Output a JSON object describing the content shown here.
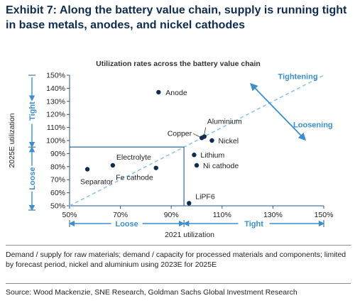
{
  "exhibit": {
    "title": "Exhibit 7: Along the battery value chain, supply is running tight in base metals, anodes, and nickel cathodes"
  },
  "chart_data": {
    "type": "scatter",
    "title": "Utilization rates across the battery value chain",
    "xlabel": "2021 utilization",
    "ylabel": "2025E utilization",
    "xlim": [
      50,
      150
    ],
    "ylim": [
      50,
      150
    ],
    "x_ticks": [
      "50%",
      "70%",
      "90%",
      "110%",
      "130%",
      "150%"
    ],
    "y_ticks": [
      "50%",
      "60%",
      "70%",
      "80%",
      "90%",
      "100%",
      "110%",
      "120%",
      "130%",
      "140%",
      "150%"
    ],
    "points": [
      {
        "label": "Anode",
        "x": 85,
        "y": 137
      },
      {
        "label": "Aluminium",
        "x": 103,
        "y": 103
      },
      {
        "label": "Copper",
        "x": 102,
        "y": 102
      },
      {
        "label": "Nickel",
        "x": 106,
        "y": 100
      },
      {
        "label": "Lithium",
        "x": 99,
        "y": 89
      },
      {
        "label": "Ni cathode",
        "x": 100,
        "y": 81
      },
      {
        "label": "Electrolyte",
        "x": 67,
        "y": 81
      },
      {
        "label": "Fe cathode",
        "x": 84,
        "y": 79
      },
      {
        "label": "Separator",
        "x": 57,
        "y": 78
      },
      {
        "label": "LiPF6",
        "x": 97,
        "y": 52
      }
    ],
    "reference_line": {
      "from": [
        50,
        50
      ],
      "to": [
        150,
        150
      ],
      "style": "dashed",
      "color": "#8ec3e6"
    },
    "threshold": {
      "x": 95,
      "y": 95
    },
    "annotations": {
      "tightening": "Tightening",
      "loosening": "Loosening",
      "y_tight": "Tight",
      "y_loose": "Loose",
      "x_loose": "Loose",
      "x_tight": "Tight"
    },
    "colors": {
      "point": "#0e2d50",
      "axis": "#1f5a8a",
      "annotation": "#3a8fd0",
      "threshold": "#1f5a8a"
    },
    "grid": false
  },
  "note": "Demand / supply for raw materials; demand / capacity for processed materials and components; limited by forecast period, nickel and aluminium using 2023E for 2025E",
  "source": "Source: Wood Mackenzie, SNE Research, Goldman Sachs Global Investment Research"
}
